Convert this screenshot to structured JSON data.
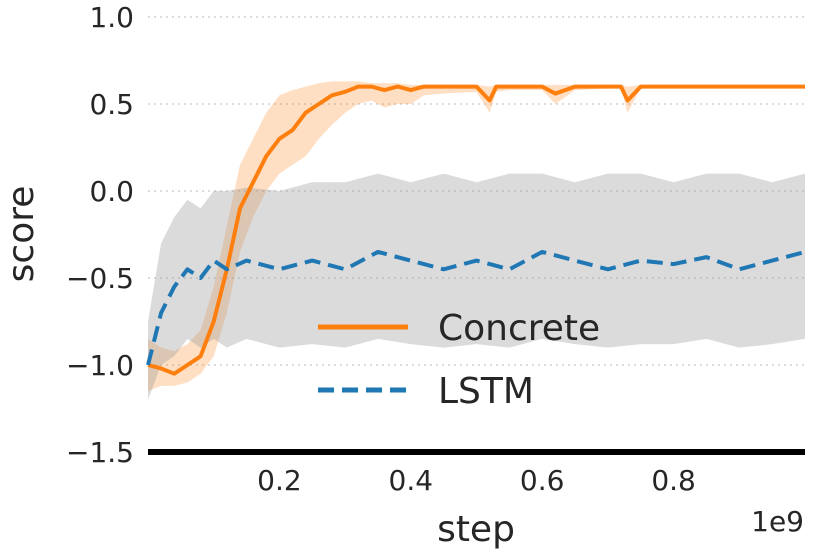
{
  "chart_data": {
    "type": "line",
    "title": "",
    "xlabel": "step",
    "ylabel": "score",
    "x_offset_label": "1e9",
    "xlim": [
      0.0,
      1.0
    ],
    "ylim": [
      -1.5,
      1.0
    ],
    "xticks": [
      0.2,
      0.4,
      0.6,
      0.8
    ],
    "xtick_labels": [
      "0.2",
      "0.4",
      "0.6",
      "0.8"
    ],
    "yticks": [
      1.0,
      0.5,
      0.0,
      -0.5,
      -1.0,
      -1.5
    ],
    "ytick_labels": [
      "1.0",
      "0.5",
      "0.0",
      "−0.5",
      "−1.0",
      "−1.5"
    ],
    "grid": "horizontal-dotted",
    "legend_position": "lower-center",
    "colors": {
      "Concrete": "#ff7f0e",
      "LSTM": "#1f77b4",
      "band": "#999999"
    },
    "series": [
      {
        "name": "Concrete",
        "style": "solid",
        "x": [
          0.0,
          0.02,
          0.04,
          0.06,
          0.08,
          0.1,
          0.12,
          0.14,
          0.16,
          0.18,
          0.2,
          0.22,
          0.24,
          0.26,
          0.28,
          0.3,
          0.32,
          0.34,
          0.36,
          0.38,
          0.4,
          0.42,
          0.45,
          0.5,
          0.52,
          0.53,
          0.55,
          0.58,
          0.6,
          0.62,
          0.65,
          0.7,
          0.72,
          0.73,
          0.75,
          0.8,
          0.85,
          0.9,
          0.95,
          1.0
        ],
        "y": [
          -1.0,
          -1.02,
          -1.05,
          -1.0,
          -0.95,
          -0.75,
          -0.45,
          -0.1,
          0.05,
          0.2,
          0.3,
          0.35,
          0.45,
          0.5,
          0.55,
          0.57,
          0.6,
          0.6,
          0.58,
          0.6,
          0.58,
          0.6,
          0.6,
          0.6,
          0.52,
          0.6,
          0.6,
          0.6,
          0.6,
          0.56,
          0.6,
          0.6,
          0.6,
          0.52,
          0.6,
          0.6,
          0.6,
          0.6,
          0.6,
          0.6
        ],
        "band_lower": [
          -1.15,
          -1.12,
          -1.12,
          -1.1,
          -1.05,
          -0.95,
          -0.7,
          -0.35,
          -0.15,
          0.0,
          0.1,
          0.15,
          0.2,
          0.3,
          0.38,
          0.45,
          0.5,
          0.52,
          0.48,
          0.5,
          0.5,
          0.55,
          0.56,
          0.57,
          0.45,
          0.57,
          0.58,
          0.58,
          0.58,
          0.5,
          0.58,
          0.59,
          0.59,
          0.45,
          0.59,
          0.59,
          0.59,
          0.59,
          0.59,
          0.59
        ],
        "band_upper": [
          -0.85,
          -0.9,
          -0.92,
          -0.88,
          -0.8,
          -0.55,
          -0.2,
          0.15,
          0.3,
          0.45,
          0.55,
          0.58,
          0.6,
          0.62,
          0.63,
          0.63,
          0.63,
          0.62,
          0.62,
          0.62,
          0.61,
          0.61,
          0.61,
          0.61,
          0.6,
          0.61,
          0.61,
          0.61,
          0.61,
          0.61,
          0.61,
          0.61,
          0.61,
          0.6,
          0.61,
          0.61,
          0.61,
          0.61,
          0.61,
          0.61
        ]
      },
      {
        "name": "LSTM",
        "style": "dashed",
        "x": [
          0.0,
          0.02,
          0.04,
          0.06,
          0.08,
          0.1,
          0.12,
          0.15,
          0.2,
          0.25,
          0.3,
          0.35,
          0.4,
          0.45,
          0.5,
          0.55,
          0.6,
          0.65,
          0.7,
          0.75,
          0.8,
          0.85,
          0.9,
          0.95,
          1.0
        ],
        "y": [
          -1.0,
          -0.7,
          -0.55,
          -0.45,
          -0.5,
          -0.4,
          -0.45,
          -0.4,
          -0.45,
          -0.4,
          -0.45,
          -0.35,
          -0.4,
          -0.45,
          -0.4,
          -0.45,
          -0.35,
          -0.4,
          -0.45,
          -0.4,
          -0.42,
          -0.38,
          -0.45,
          -0.4,
          -0.35
        ],
        "band_lower": [
          -1.2,
          -1.0,
          -0.95,
          -0.85,
          -0.9,
          -0.85,
          -0.9,
          -0.85,
          -0.9,
          -0.88,
          -0.9,
          -0.85,
          -0.88,
          -0.9,
          -0.88,
          -0.9,
          -0.85,
          -0.88,
          -0.9,
          -0.88,
          -0.88,
          -0.85,
          -0.9,
          -0.88,
          -0.85
        ],
        "band_upper": [
          -0.75,
          -0.3,
          -0.15,
          -0.05,
          -0.1,
          0.0,
          0.0,
          0.02,
          0.0,
          0.05,
          0.05,
          0.1,
          0.05,
          0.1,
          0.05,
          0.1,
          0.1,
          0.05,
          0.1,
          0.1,
          0.05,
          0.1,
          0.1,
          0.05,
          0.1
        ]
      }
    ]
  }
}
